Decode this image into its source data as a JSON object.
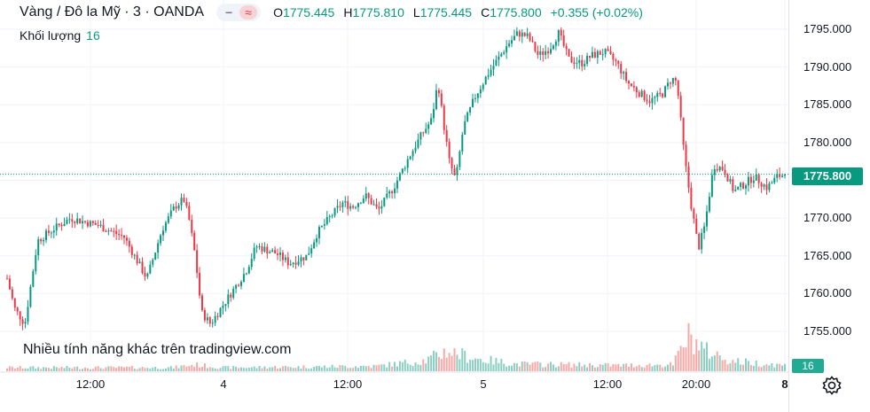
{
  "header": {
    "symbol": "Vàng / Đô la Mỹ · 3 · OANDA",
    "open_label": "O",
    "open": "1775.445",
    "high_label": "H",
    "high": "1775.810",
    "low_label": "L",
    "low": "1775.445",
    "close_label": "C",
    "close": "1775.800",
    "change": "+0.355 (+0.02%)"
  },
  "volume": {
    "label": "Khối lượng",
    "value": "16"
  },
  "promo_text": "Nhiều tính năng khác trên tradingview.com",
  "price_badge": "1775.800",
  "volume_badge": "16",
  "colors": {
    "up": "#089981",
    "down": "#f23645",
    "up_volume": "#8ccfc2",
    "down_volume": "#f7a9a7",
    "accent": "#089981"
  },
  "icons": [
    "minus-icon",
    "approx-icon",
    "gear-icon"
  ],
  "chart_data": {
    "type": "candlestick",
    "y_ticks": [
      "1795.000",
      "1790.000",
      "1785.000",
      "1780.000",
      "1775.000",
      "1770.000",
      "1765.000",
      "1760.000",
      "1755.000"
    ],
    "x_ticks": [
      {
        "label": "12:00",
        "bold": false
      },
      {
        "label": "4",
        "bold": false
      },
      {
        "label": "12:00",
        "bold": false
      },
      {
        "label": "5",
        "bold": false
      },
      {
        "label": "12:00",
        "bold": false
      },
      {
        "label": "20:00",
        "bold": false
      },
      {
        "label": "8",
        "bold": true
      }
    ],
    "ylim": [
      1751.5,
      1797.5
    ],
    "last_price": 1775.8,
    "grid": true,
    "price_path": [
      [
        0,
        1762
      ],
      [
        0.3,
        1758
      ],
      [
        0.7,
        1756
      ],
      [
        1.2,
        1767
      ],
      [
        1.8,
        1768.5
      ],
      [
        2.5,
        1770
      ],
      [
        3.6,
        1769
      ],
      [
        4.6,
        1767.5
      ],
      [
        5.5,
        1762
      ],
      [
        6.1,
        1768.5
      ],
      [
        6.6,
        1771.5
      ],
      [
        6.95,
        1772.5
      ],
      [
        7.15,
        1770
      ],
      [
        7.4,
        1765
      ],
      [
        7.65,
        1757.5
      ],
      [
        8.0,
        1756
      ],
      [
        8.8,
        1760
      ],
      [
        9.4,
        1763
      ],
      [
        9.8,
        1766.3
      ],
      [
        10.6,
        1765.3
      ],
      [
        11.1,
        1764
      ],
      [
        11.8,
        1765
      ],
      [
        12.2,
        1768
      ],
      [
        12.8,
        1770.5
      ],
      [
        13.2,
        1772
      ],
      [
        13.6,
        1771.5
      ],
      [
        14.1,
        1773
      ],
      [
        14.6,
        1771
      ],
      [
        15.2,
        1774
      ],
      [
        15.8,
        1778
      ],
      [
        16.3,
        1781
      ],
      [
        16.7,
        1783
      ],
      [
        16.95,
        1788
      ],
      [
        17.15,
        1783
      ],
      [
        17.4,
        1777.5
      ],
      [
        17.65,
        1775
      ],
      [
        17.95,
        1782
      ],
      [
        18.4,
        1786
      ],
      [
        18.9,
        1789
      ],
      [
        19.3,
        1791
      ],
      [
        19.7,
        1793
      ],
      [
        20.1,
        1794.5
      ],
      [
        20.5,
        1794
      ],
      [
        20.9,
        1791.5
      ],
      [
        21.35,
        1792.5
      ],
      [
        21.7,
        1794.5
      ],
      [
        22.1,
        1791
      ],
      [
        22.6,
        1790.5
      ],
      [
        23.0,
        1791.5
      ],
      [
        23.5,
        1792
      ],
      [
        24.0,
        1790.5
      ],
      [
        24.4,
        1788
      ],
      [
        24.9,
        1786.5
      ],
      [
        25.3,
        1785.5
      ],
      [
        25.8,
        1786.5
      ],
      [
        26.15,
        1788.5
      ],
      [
        26.35,
        1788
      ],
      [
        26.65,
        1778
      ],
      [
        26.9,
        1772
      ],
      [
        27.2,
        1766
      ],
      [
        27.45,
        1769
      ],
      [
        27.8,
        1777
      ],
      [
        28.2,
        1776.5
      ],
      [
        28.6,
        1773.5
      ],
      [
        29.0,
        1774.5
      ],
      [
        29.4,
        1775.5
      ],
      [
        29.9,
        1774
      ],
      [
        30.3,
        1775.5
      ],
      [
        30.6,
        1775.8
      ]
    ],
    "volume_profile": [
      [
        0,
        5
      ],
      [
        6.5,
        5
      ],
      [
        7.4,
        9
      ],
      [
        8.5,
        5
      ],
      [
        14.5,
        7
      ],
      [
        16.5,
        15
      ],
      [
        17.3,
        28
      ],
      [
        18.5,
        17
      ],
      [
        20.0,
        10
      ],
      [
        24.0,
        8
      ],
      [
        26.2,
        9
      ],
      [
        26.8,
        48
      ],
      [
        27.5,
        28
      ],
      [
        28.5,
        14
      ],
      [
        30.6,
        8
      ]
    ]
  }
}
